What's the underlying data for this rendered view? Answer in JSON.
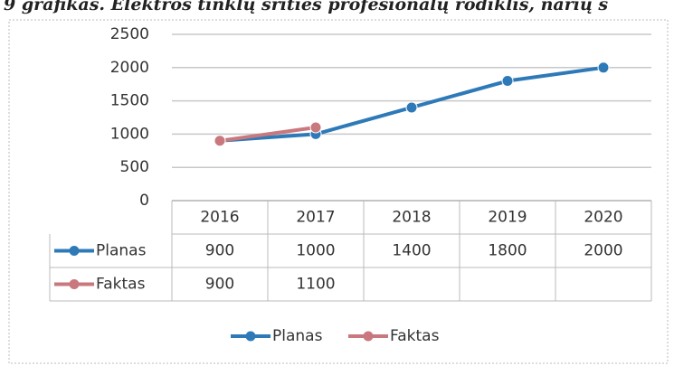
{
  "chart_data": {
    "type": "line",
    "title": "9 grafikas. Elektros tinklų srities profesionalų rodiklis, narių s",
    "categories": [
      "2016",
      "2017",
      "2018",
      "2019",
      "2020"
    ],
    "series": [
      {
        "name": "Planas",
        "color": "#2e7ab8",
        "values": [
          900,
          1000,
          1400,
          1800,
          2000
        ]
      },
      {
        "name": "Faktas",
        "color": "#c9787d",
        "values": [
          900,
          1100,
          null,
          null,
          null
        ]
      }
    ],
    "ylim": [
      0,
      2500
    ],
    "yticks": [
      0,
      500,
      1000,
      1500,
      2000,
      2500
    ],
    "grid": true,
    "legend": "bottom",
    "data_table": true
  }
}
